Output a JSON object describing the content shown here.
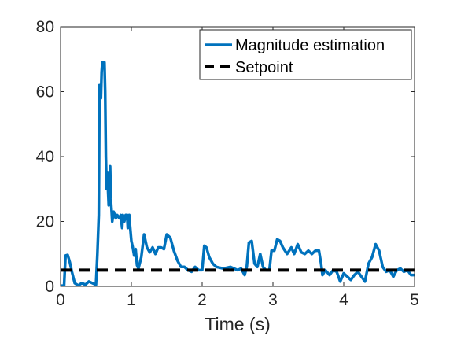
{
  "chart_data": {
    "type": "line",
    "title": "",
    "xlabel": "Time (s)",
    "ylabel": "",
    "xlim": [
      0,
      5
    ],
    "ylim": [
      0,
      80
    ],
    "x_ticks": [
      0,
      1,
      2,
      3,
      4,
      5
    ],
    "y_ticks": [
      0,
      20,
      40,
      60,
      80
    ],
    "x_tick_labels": [
      "0",
      "1",
      "2",
      "3",
      "4",
      "5"
    ],
    "y_tick_labels": [
      "0",
      "20",
      "40",
      "60",
      "80"
    ],
    "grid": false,
    "legend_position": "top-right",
    "series": [
      {
        "name": "Magnitude estimation",
        "color": "#0072BD",
        "style": "solid",
        "points": [
          [
            0.0,
            0.2
          ],
          [
            0.05,
            0.3
          ],
          [
            0.07,
            9.5
          ],
          [
            0.1,
            9.7
          ],
          [
            0.13,
            7.5
          ],
          [
            0.16,
            4.5
          ],
          [
            0.2,
            1.0
          ],
          [
            0.25,
            0.3
          ],
          [
            0.3,
            1.0
          ],
          [
            0.35,
            0.5
          ],
          [
            0.4,
            1.5
          ],
          [
            0.45,
            1.0
          ],
          [
            0.5,
            0.5
          ],
          [
            0.52,
            10.0
          ],
          [
            0.54,
            22.0
          ],
          [
            0.55,
            62.0
          ],
          [
            0.57,
            58.0
          ],
          [
            0.58,
            66.0
          ],
          [
            0.59,
            69.0
          ],
          [
            0.62,
            69.0
          ],
          [
            0.63,
            60.0
          ],
          [
            0.64,
            40.0
          ],
          [
            0.65,
            30.0
          ],
          [
            0.66,
            35.0
          ],
          [
            0.68,
            25.0
          ],
          [
            0.7,
            37.0
          ],
          [
            0.71,
            27.0
          ],
          [
            0.73,
            20.0
          ],
          [
            0.75,
            23.0
          ],
          [
            0.78,
            21.0
          ],
          [
            0.8,
            22.0
          ],
          [
            0.83,
            21.0
          ],
          [
            0.85,
            22.0
          ],
          [
            0.87,
            18.0
          ],
          [
            0.88,
            22.0
          ],
          [
            0.9,
            20.0
          ],
          [
            0.92,
            22.0
          ],
          [
            0.94,
            22.0
          ],
          [
            0.95,
            18.0
          ],
          [
            0.97,
            22.0
          ],
          [
            0.98,
            19.0
          ],
          [
            1.0,
            14.0
          ],
          [
            1.02,
            12.0
          ],
          [
            1.04,
            9.5
          ],
          [
            1.06,
            11.5
          ],
          [
            1.08,
            6.5
          ],
          [
            1.1,
            5.5
          ],
          [
            1.14,
            9.0
          ],
          [
            1.18,
            16.0
          ],
          [
            1.22,
            12.0
          ],
          [
            1.26,
            10.5
          ],
          [
            1.3,
            12.0
          ],
          [
            1.34,
            10.0
          ],
          [
            1.38,
            12.0
          ],
          [
            1.42,
            12.0
          ],
          [
            1.46,
            11.5
          ],
          [
            1.5,
            16.0
          ],
          [
            1.55,
            15.0
          ],
          [
            1.6,
            11.0
          ],
          [
            1.65,
            8.0
          ],
          [
            1.7,
            6.0
          ],
          [
            1.75,
            6.0
          ],
          [
            1.8,
            5.0
          ],
          [
            1.85,
            4.5
          ],
          [
            1.9,
            6.0
          ],
          [
            1.95,
            5.0
          ],
          [
            2.0,
            5.0
          ],
          [
            2.03,
            12.5
          ],
          [
            2.06,
            12.0
          ],
          [
            2.1,
            9.0
          ],
          [
            2.15,
            7.0
          ],
          [
            2.2,
            6.0
          ],
          [
            2.3,
            5.5
          ],
          [
            2.4,
            6.0
          ],
          [
            2.5,
            5.0
          ],
          [
            2.55,
            5.5
          ],
          [
            2.6,
            3.5
          ],
          [
            2.63,
            6.0
          ],
          [
            2.66,
            13.5
          ],
          [
            2.7,
            14.0
          ],
          [
            2.74,
            7.0
          ],
          [
            2.78,
            6.0
          ],
          [
            2.82,
            10.0
          ],
          [
            2.86,
            6.0
          ],
          [
            2.9,
            5.0
          ],
          [
            2.95,
            5.0
          ],
          [
            2.98,
            11.0
          ],
          [
            3.02,
            11.0
          ],
          [
            3.06,
            14.5
          ],
          [
            3.1,
            14.0
          ],
          [
            3.14,
            12.0
          ],
          [
            3.2,
            10.0
          ],
          [
            3.26,
            12.0
          ],
          [
            3.3,
            10.0
          ],
          [
            3.35,
            13.0
          ],
          [
            3.4,
            10.5
          ],
          [
            3.45,
            10.0
          ],
          [
            3.5,
            11.0
          ],
          [
            3.55,
            10.0
          ],
          [
            3.6,
            11.0
          ],
          [
            3.65,
            11.0
          ],
          [
            3.68,
            7.0
          ],
          [
            3.7,
            3.5
          ],
          [
            3.74,
            5.0
          ],
          [
            3.8,
            3.5
          ],
          [
            3.85,
            5.0
          ],
          [
            3.9,
            4.5
          ],
          [
            3.95,
            1.5
          ],
          [
            4.0,
            4.0
          ],
          [
            4.05,
            3.0
          ],
          [
            4.1,
            2.0
          ],
          [
            4.15,
            3.5
          ],
          [
            4.2,
            4.5
          ],
          [
            4.25,
            3.0
          ],
          [
            4.3,
            1.5
          ],
          [
            4.35,
            7.0
          ],
          [
            4.4,
            9.0
          ],
          [
            4.45,
            13.0
          ],
          [
            4.5,
            11.0
          ],
          [
            4.55,
            6.0
          ],
          [
            4.6,
            4.5
          ],
          [
            4.65,
            5.0
          ],
          [
            4.7,
            3.0
          ],
          [
            4.75,
            5.0
          ],
          [
            4.8,
            5.5
          ],
          [
            4.85,
            4.5
          ],
          [
            4.9,
            5.0
          ],
          [
            4.95,
            3.5
          ],
          [
            5.0,
            3.5
          ]
        ]
      },
      {
        "name": "Setpoint",
        "color": "#000000",
        "style": "dashed",
        "points": [
          [
            0.0,
            5.0
          ],
          [
            5.0,
            5.0
          ]
        ]
      }
    ]
  }
}
